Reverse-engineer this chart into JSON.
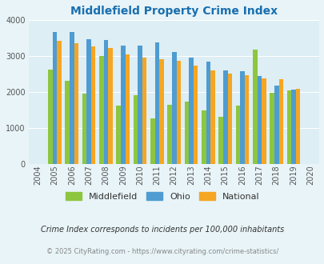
{
  "title": "Middlefield Property Crime Index",
  "title_color": "#1a6faf",
  "all_years": [
    2004,
    2005,
    2006,
    2007,
    2008,
    2009,
    2010,
    2011,
    2012,
    2013,
    2014,
    2015,
    2016,
    2017,
    2018,
    2019,
    2020
  ],
  "data_years": [
    2005,
    2006,
    2007,
    2008,
    2009,
    2010,
    2011,
    2012,
    2013,
    2014,
    2015,
    2016,
    2017,
    2018,
    2019
  ],
  "middlefield": [
    2620,
    2300,
    1950,
    3000,
    1610,
    1900,
    1260,
    1640,
    1720,
    1480,
    1310,
    1620,
    3170,
    1970,
    2040
  ],
  "ohio": [
    3660,
    3660,
    3470,
    3440,
    3280,
    3280,
    3370,
    3110,
    2960,
    2830,
    2590,
    2570,
    2430,
    2180,
    2060
  ],
  "national": [
    3420,
    3360,
    3270,
    3210,
    3040,
    2950,
    2900,
    2860,
    2730,
    2590,
    2500,
    2450,
    2380,
    2360,
    2080
  ],
  "middlefield_color": "#8dc63f",
  "ohio_color": "#4e9cd1",
  "national_color": "#f5a623",
  "bg_color": "#e8f4f8",
  "plot_bg_color": "#ddeef5",
  "ylim": [
    0,
    4000
  ],
  "yticks": [
    0,
    1000,
    2000,
    3000,
    4000
  ],
  "footnote": "Crime Index corresponds to incidents per 100,000 inhabitants",
  "footnote2": "© 2025 CityRating.com - https://www.cityrating.com/crime-statistics/",
  "footnote_color": "#333333",
  "footnote2_color": "#888888",
  "legend_labels": [
    "Middlefield",
    "Ohio",
    "National"
  ]
}
